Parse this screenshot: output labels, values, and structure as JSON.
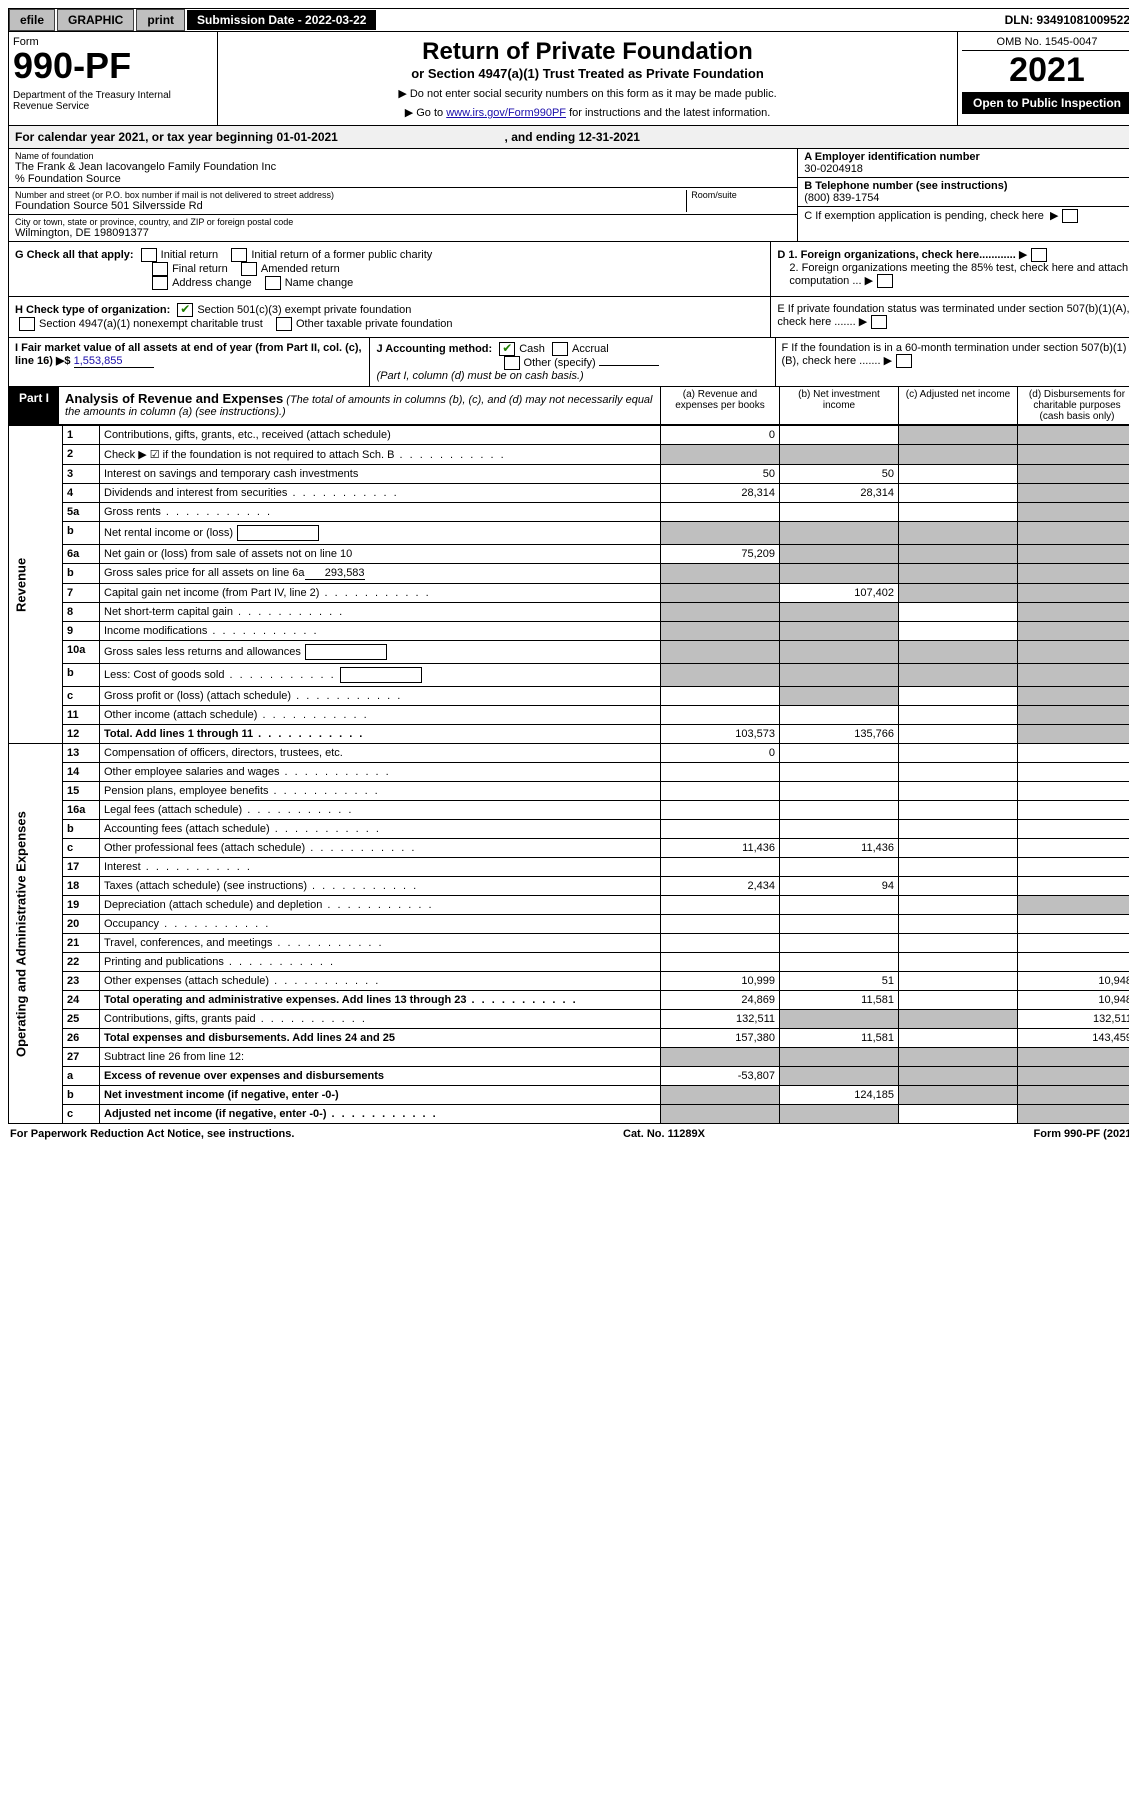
{
  "topbar": {
    "efile_btn1": "efile",
    "efile_btn2": "GRAPHIC",
    "efile_btn3": "print",
    "submission_label": "Submission Date - 2022-03-22",
    "dln": "DLN: 93491081009522"
  },
  "header": {
    "form_word": "Form",
    "form_number": "990-PF",
    "dept": "Department of the Treasury\nInternal Revenue Service",
    "title": "Return of Private Foundation",
    "subtitle": "or Section 4947(a)(1) Trust Treated as Private Foundation",
    "instr1": "▶ Do not enter social security numbers on this form as it may be made public.",
    "instr2_pre": "▶ Go to ",
    "instr2_link": "www.irs.gov/Form990PF",
    "instr2_post": " for instructions and the latest information.",
    "omb": "OMB No. 1545-0047",
    "year": "2021",
    "openpub": "Open to Public Inspection"
  },
  "calendar": {
    "prefix": "For calendar year 2021, or tax year beginning ",
    "begin": "01-01-2021",
    "mid": " , and ending ",
    "end": "12-31-2021"
  },
  "info": {
    "name_label": "Name of foundation",
    "name": "The Frank & Jean Iacovangelo Family Foundation Inc",
    "care_of": "% Foundation Source",
    "addr_label": "Number and street (or P.O. box number if mail is not delivered to street address)",
    "addr": "Foundation Source 501 Silversside Rd",
    "room_label": "Room/suite",
    "city_label": "City or town, state or province, country, and ZIP or foreign postal code",
    "city": "Wilmington, DE  198091377",
    "a_label": "A Employer identification number",
    "a_val": "30-0204918",
    "b_label": "B Telephone number (see instructions)",
    "b_val": "(800) 839-1754",
    "c_label": "C If exemption application is pending, check here"
  },
  "checks": {
    "g_label": "G Check all that apply:",
    "g_opts": [
      "Initial return",
      "Initial return of a former public charity",
      "Final return",
      "Amended return",
      "Address change",
      "Name change"
    ],
    "h_label": "H Check type of organization:",
    "h_opt1": "Section 501(c)(3) exempt private foundation",
    "h_opt2": "Section 4947(a)(1) nonexempt charitable trust",
    "h_opt3": "Other taxable private foundation",
    "i_label": "I Fair market value of all assets at end of year (from Part II, col. (c), line 16)  ▶$ ",
    "i_val": "1,553,855",
    "j_label": "J Accounting method:",
    "j_opt1": "Cash",
    "j_opt2": "Accrual",
    "j_opt3": "Other (specify)",
    "j_note": "(Part I, column (d) must be on cash basis.)",
    "d1": "D 1. Foreign organizations, check here............",
    "d2": "2. Foreign organizations meeting the 85% test, check here and attach computation ...",
    "e": "E  If private foundation status was terminated under section 507(b)(1)(A), check here .......",
    "f": "F  If the foundation is in a 60-month termination under section 507(b)(1)(B), check here ......."
  },
  "part1": {
    "label": "Part I",
    "title": "Analysis of Revenue and Expenses",
    "note": " (The total of amounts in columns (b), (c), and (d) may not necessarily equal the amounts in column (a) (see instructions).)",
    "col_a": "(a)  Revenue and expenses per books",
    "col_b": "(b)  Net investment income",
    "col_c": "(c)  Adjusted net income",
    "col_d": "(d)  Disbursements for charitable purposes (cash basis only)"
  },
  "vside": {
    "revenue": "Revenue",
    "expenses": "Operating and Administrative Expenses"
  },
  "rows": [
    {
      "n": "1",
      "desc": "Contributions, gifts, grants, etc., received (attach schedule)",
      "a": "0",
      "b": "",
      "c_grey": true,
      "d_grey": true
    },
    {
      "n": "2",
      "desc": "Check ▶ ☑ if the foundation is not required to attach Sch. B",
      "dots": true,
      "a_grey": true,
      "b_grey": true,
      "c_grey": true,
      "d_grey": true,
      "checked": true
    },
    {
      "n": "3",
      "desc": "Interest on savings and temporary cash investments",
      "a": "50",
      "b": "50",
      "d_grey": true
    },
    {
      "n": "4",
      "desc": "Dividends and interest from securities",
      "dots": true,
      "a": "28,314",
      "b": "28,314",
      "d_grey": true
    },
    {
      "n": "5a",
      "desc": "Gross rents",
      "dots": true,
      "d_grey": true
    },
    {
      "n": "b",
      "desc": "Net rental income or (loss)",
      "inline_box": true,
      "a_grey": true,
      "b_grey": true,
      "c_grey": true,
      "d_grey": true
    },
    {
      "n": "6a",
      "desc": "Net gain or (loss) from sale of assets not on line 10",
      "a": "75,209",
      "b_grey": true,
      "c_grey": true,
      "d_grey": true
    },
    {
      "n": "b",
      "desc": "Gross sales price for all assets on line 6a",
      "inline_val": "293,583",
      "a_grey": true,
      "b_grey": true,
      "c_grey": true,
      "d_grey": true
    },
    {
      "n": "7",
      "desc": "Capital gain net income (from Part IV, line 2)",
      "dots": true,
      "a_grey": true,
      "b": "107,402",
      "c_grey": true,
      "d_grey": true
    },
    {
      "n": "8",
      "desc": "Net short-term capital gain",
      "dots": true,
      "a_grey": true,
      "b_grey": true,
      "d_grey": true
    },
    {
      "n": "9",
      "desc": "Income modifications",
      "dots": true,
      "a_grey": true,
      "b_grey": true,
      "d_grey": true
    },
    {
      "n": "10a",
      "desc": "Gross sales less returns and allowances",
      "inline_box": true,
      "a_grey": true,
      "b_grey": true,
      "c_grey": true,
      "d_grey": true
    },
    {
      "n": "b",
      "desc": "Less: Cost of goods sold",
      "dots": true,
      "inline_box": true,
      "a_grey": true,
      "b_grey": true,
      "c_grey": true,
      "d_grey": true
    },
    {
      "n": "c",
      "desc": "Gross profit or (loss) (attach schedule)",
      "dots": true,
      "b_grey": true,
      "d_grey": true
    },
    {
      "n": "11",
      "desc": "Other income (attach schedule)",
      "dots": true,
      "d_grey": true
    },
    {
      "n": "12",
      "desc": "Total. Add lines 1 through 11",
      "dots": true,
      "bold": true,
      "a": "103,573",
      "b": "135,766",
      "d_grey": true
    }
  ],
  "exp_rows": [
    {
      "n": "13",
      "desc": "Compensation of officers, directors, trustees, etc.",
      "a": "0"
    },
    {
      "n": "14",
      "desc": "Other employee salaries and wages",
      "dots": true
    },
    {
      "n": "15",
      "desc": "Pension plans, employee benefits",
      "dots": true
    },
    {
      "n": "16a",
      "desc": "Legal fees (attach schedule)",
      "dots": true
    },
    {
      "n": "b",
      "desc": "Accounting fees (attach schedule)",
      "dots": true
    },
    {
      "n": "c",
      "desc": "Other professional fees (attach schedule)",
      "dots": true,
      "a": "11,436",
      "b": "11,436"
    },
    {
      "n": "17",
      "desc": "Interest",
      "dots": true
    },
    {
      "n": "18",
      "desc": "Taxes (attach schedule) (see instructions)",
      "dots": true,
      "a": "2,434",
      "b": "94"
    },
    {
      "n": "19",
      "desc": "Depreciation (attach schedule) and depletion",
      "dots": true,
      "d_grey": true
    },
    {
      "n": "20",
      "desc": "Occupancy",
      "dots": true
    },
    {
      "n": "21",
      "desc": "Travel, conferences, and meetings",
      "dots": true
    },
    {
      "n": "22",
      "desc": "Printing and publications",
      "dots": true
    },
    {
      "n": "23",
      "desc": "Other expenses (attach schedule)",
      "dots": true,
      "a": "10,999",
      "b": "51",
      "d": "10,948"
    },
    {
      "n": "24",
      "desc": "Total operating and administrative expenses. Add lines 13 through 23",
      "dots": true,
      "bold": true,
      "a": "24,869",
      "b": "11,581",
      "d": "10,948"
    },
    {
      "n": "25",
      "desc": "Contributions, gifts, grants paid",
      "dots": true,
      "a": "132,511",
      "b_grey": true,
      "c_grey": true,
      "d": "132,511"
    },
    {
      "n": "26",
      "desc": "Total expenses and disbursements. Add lines 24 and 25",
      "bold": true,
      "a": "157,380",
      "b": "11,581",
      "d": "143,459"
    },
    {
      "n": "27",
      "desc": "Subtract line 26 from line 12:",
      "bold": false,
      "a_grey": true,
      "b_grey": true,
      "c_grey": true,
      "d_grey": true
    },
    {
      "n": "a",
      "desc": "Excess of revenue over expenses and disbursements",
      "bold": true,
      "a": "-53,807",
      "b_grey": true,
      "c_grey": true,
      "d_grey": true
    },
    {
      "n": "b",
      "desc": "Net investment income (if negative, enter -0-)",
      "bold": true,
      "a_grey": true,
      "b": "124,185",
      "c_grey": true,
      "d_grey": true
    },
    {
      "n": "c",
      "desc": "Adjusted net income (if negative, enter -0-)",
      "dots": true,
      "bold": true,
      "a_grey": true,
      "b_grey": true,
      "d_grey": true
    }
  ],
  "footer": {
    "left": "For Paperwork Reduction Act Notice, see instructions.",
    "mid": "Cat. No. 11289X",
    "right": "Form 990-PF (2021)"
  }
}
